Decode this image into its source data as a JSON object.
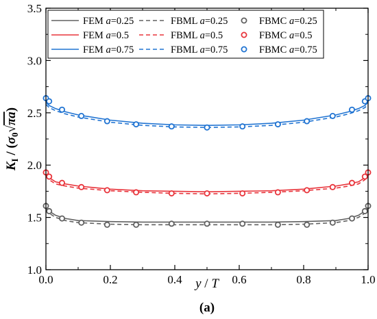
{
  "chart_data": {
    "type": "line",
    "xlabel": "y / T",
    "ylabel": "K_I / (σ0√πa)",
    "caption": "(a)",
    "xlim": [
      0.0,
      1.0
    ],
    "ylim": [
      1.0,
      3.5
    ],
    "xticks": [
      "0.0",
      "0.2",
      "0.4",
      "0.6",
      "0.8",
      "1.0"
    ],
    "yticks": [
      "1.0",
      "1.5",
      "2.0",
      "2.5",
      "3.0",
      "3.5"
    ],
    "grid": false,
    "legend_position": "top",
    "colors": {
      "a025": "#606060",
      "a05": "#e8333a",
      "a075": "#1f73d2"
    },
    "legend": [
      {
        "prefix": "FEM",
        "a": "0.25",
        "style": "solid",
        "color": "#606060"
      },
      {
        "prefix": "FBML",
        "a": "0.25",
        "style": "dashed",
        "color": "#606060"
      },
      {
        "prefix": "FBMC",
        "a": "0.25",
        "style": "marker",
        "color": "#606060"
      },
      {
        "prefix": "FEM",
        "a": "0.5",
        "style": "solid",
        "color": "#e8333a"
      },
      {
        "prefix": "FBML",
        "a": "0.5",
        "style": "dashed",
        "color": "#e8333a"
      },
      {
        "prefix": "FBMC",
        "a": "0.5",
        "style": "marker",
        "color": "#e8333a"
      },
      {
        "prefix": "FEM",
        "a": "0.75",
        "style": "solid",
        "color": "#1f73d2"
      },
      {
        "prefix": "FBML",
        "a": "0.75",
        "style": "dashed",
        "color": "#1f73d2"
      },
      {
        "prefix": "FBMC",
        "a": "0.75",
        "style": "marker",
        "color": "#1f73d2"
      }
    ],
    "series": [
      {
        "name": "FEM a=0.25",
        "style": "solid",
        "color": "#606060",
        "x": [
          0.0,
          0.01,
          0.03,
          0.06,
          0.1,
          0.2,
          0.3,
          0.4,
          0.5,
          0.6,
          0.7,
          0.8,
          0.9,
          0.94,
          0.97,
          0.99,
          1.0
        ],
        "y": [
          1.6,
          1.56,
          1.52,
          1.49,
          1.47,
          1.46,
          1.455,
          1.455,
          1.455,
          1.455,
          1.455,
          1.46,
          1.47,
          1.49,
          1.52,
          1.56,
          1.6
        ]
      },
      {
        "name": "FBML a=0.25",
        "style": "dashed",
        "color": "#606060",
        "x": [
          0.0,
          0.01,
          0.03,
          0.06,
          0.1,
          0.2,
          0.3,
          0.4,
          0.5,
          0.6,
          0.7,
          0.8,
          0.9,
          0.94,
          0.97,
          0.99,
          1.0
        ],
        "y": [
          1.58,
          1.54,
          1.5,
          1.47,
          1.45,
          1.435,
          1.43,
          1.43,
          1.43,
          1.43,
          1.43,
          1.435,
          1.45,
          1.47,
          1.5,
          1.54,
          1.58
        ]
      },
      {
        "name": "FBMC a=0.25",
        "style": "marker",
        "color": "#606060",
        "x": [
          0.0,
          0.01,
          0.05,
          0.11,
          0.19,
          0.28,
          0.39,
          0.5,
          0.61,
          0.72,
          0.81,
          0.89,
          0.95,
          0.99,
          1.0
        ],
        "y": [
          1.61,
          1.56,
          1.49,
          1.45,
          1.43,
          1.43,
          1.44,
          1.44,
          1.44,
          1.43,
          1.43,
          1.45,
          1.49,
          1.56,
          1.61
        ]
      },
      {
        "name": "FEM a=0.5",
        "style": "solid",
        "color": "#e8333a",
        "x": [
          0.0,
          0.01,
          0.03,
          0.06,
          0.1,
          0.2,
          0.3,
          0.4,
          0.5,
          0.6,
          0.7,
          0.8,
          0.9,
          0.94,
          0.97,
          0.99,
          1.0
        ],
        "y": [
          1.92,
          1.88,
          1.84,
          1.82,
          1.8,
          1.77,
          1.755,
          1.75,
          1.745,
          1.75,
          1.755,
          1.77,
          1.8,
          1.82,
          1.84,
          1.88,
          1.92
        ]
      },
      {
        "name": "FBML a=0.5",
        "style": "dashed",
        "color": "#e8333a",
        "x": [
          0.0,
          0.01,
          0.03,
          0.06,
          0.1,
          0.2,
          0.3,
          0.4,
          0.5,
          0.6,
          0.7,
          0.8,
          0.9,
          0.94,
          0.97,
          0.99,
          1.0
        ],
        "y": [
          1.9,
          1.86,
          1.82,
          1.8,
          1.78,
          1.755,
          1.74,
          1.73,
          1.725,
          1.73,
          1.74,
          1.755,
          1.78,
          1.8,
          1.82,
          1.86,
          1.9
        ]
      },
      {
        "name": "FBMC a=0.5",
        "style": "marker",
        "color": "#e8333a",
        "x": [
          0.0,
          0.01,
          0.05,
          0.11,
          0.19,
          0.28,
          0.39,
          0.5,
          0.61,
          0.72,
          0.81,
          0.89,
          0.95,
          0.99,
          1.0
        ],
        "y": [
          1.93,
          1.89,
          1.83,
          1.79,
          1.76,
          1.74,
          1.73,
          1.73,
          1.73,
          1.74,
          1.76,
          1.79,
          1.83,
          1.89,
          1.93
        ]
      },
      {
        "name": "FEM a=0.75",
        "style": "solid",
        "color": "#1f73d2",
        "x": [
          0.0,
          0.01,
          0.03,
          0.06,
          0.1,
          0.2,
          0.3,
          0.4,
          0.5,
          0.6,
          0.7,
          0.8,
          0.9,
          0.94,
          0.97,
          0.99,
          1.0
        ],
        "y": [
          2.6,
          2.57,
          2.54,
          2.51,
          2.48,
          2.43,
          2.4,
          2.385,
          2.38,
          2.385,
          2.4,
          2.43,
          2.48,
          2.51,
          2.54,
          2.57,
          2.6
        ]
      },
      {
        "name": "FBML a=0.75",
        "style": "dashed",
        "color": "#1f73d2",
        "x": [
          0.0,
          0.01,
          0.03,
          0.06,
          0.1,
          0.2,
          0.3,
          0.4,
          0.5,
          0.6,
          0.7,
          0.8,
          0.9,
          0.94,
          0.97,
          0.99,
          1.0
        ],
        "y": [
          2.58,
          2.55,
          2.52,
          2.49,
          2.46,
          2.41,
          2.38,
          2.365,
          2.36,
          2.365,
          2.38,
          2.41,
          2.46,
          2.49,
          2.52,
          2.55,
          2.58
        ]
      },
      {
        "name": "FBMC a=0.75",
        "style": "marker",
        "color": "#1f73d2",
        "x": [
          0.0,
          0.01,
          0.05,
          0.11,
          0.19,
          0.28,
          0.39,
          0.5,
          0.61,
          0.72,
          0.81,
          0.89,
          0.95,
          0.99,
          1.0
        ],
        "y": [
          2.64,
          2.61,
          2.53,
          2.47,
          2.42,
          2.39,
          2.37,
          2.36,
          2.37,
          2.39,
          2.42,
          2.47,
          2.53,
          2.61,
          2.64
        ]
      }
    ]
  }
}
